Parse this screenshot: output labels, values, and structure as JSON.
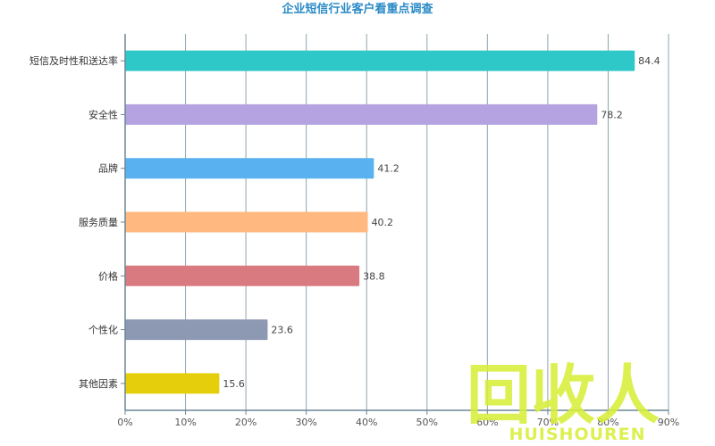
{
  "chart_data": {
    "type": "bar",
    "orientation": "horizontal",
    "title": "企业短信行业客户看重点调查",
    "xlabel": "",
    "ylabel": "",
    "xlim": [
      0,
      90
    ],
    "x_ticks": [
      "0%",
      "10%",
      "20%",
      "30%",
      "40%",
      "50%",
      "60%",
      "70%",
      "80%",
      "90%"
    ],
    "grid": "vertical",
    "legend": "none",
    "categories": [
      "短信及时性和送达率",
      "安全性",
      "品牌",
      "服务质量",
      "价格",
      "个性化",
      "其他因素"
    ],
    "values": [
      84.4,
      78.2,
      41.2,
      40.2,
      38.8,
      23.6,
      15.6
    ],
    "value_labels": [
      "84.4",
      "78.2",
      "41.2",
      "40.2",
      "38.8",
      "23.6",
      "15.6"
    ],
    "colors": [
      "#2ec8c8",
      "#b5a2e0",
      "#5ab1ef",
      "#ffb980",
      "#d87a80",
      "#8d98b3",
      "#e5cf0d"
    ]
  },
  "watermark": {
    "big_text": "回收人",
    "small_text": "HUISHOUREN",
    "color": "#d8ee3a"
  }
}
